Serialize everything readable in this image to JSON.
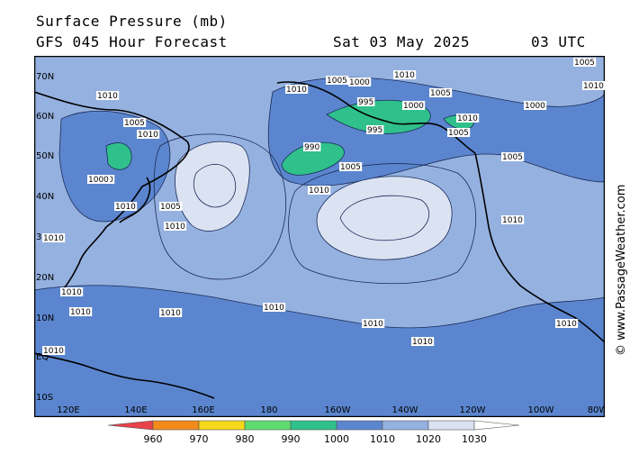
{
  "header": {
    "line1": "Surface Pressure (mb)",
    "line2": "GFS 045 Hour Forecast",
    "date": "Sat 03 May 2025",
    "time": "03 UTC"
  },
  "watermark": "© www.PassageWeather.com",
  "map": {
    "lat_labels": [
      "70N",
      "60N",
      "50N",
      "40N",
      "30N",
      "20N",
      "10N",
      "EQ",
      "10S"
    ],
    "lon_labels": [
      "120E",
      "140E",
      "160E",
      "180",
      "160W",
      "140W",
      "120W",
      "100W",
      "80W"
    ],
    "isobar_labels": [
      {
        "text": "1005"
      },
      {
        "text": "1010"
      },
      {
        "text": "1010"
      },
      {
        "text": "1010"
      },
      {
        "text": "1005"
      },
      {
        "text": "1000"
      },
      {
        "text": "1010"
      },
      {
        "text": "1005"
      },
      {
        "text": "1000"
      },
      {
        "text": "995"
      },
      {
        "text": "990"
      },
      {
        "text": "1005"
      },
      {
        "text": "1010"
      },
      {
        "text": "1000"
      },
      {
        "text": "995"
      },
      {
        "text": "1005"
      },
      {
        "text": "1010"
      },
      {
        "text": "1005"
      },
      {
        "text": "1010"
      },
      {
        "text": "1010"
      },
      {
        "text": "1010"
      },
      {
        "text": "1005"
      },
      {
        "text": "1010"
      },
      {
        "text": "1010"
      },
      {
        "text": "1010"
      },
      {
        "text": "1010"
      },
      {
        "text": "1010"
      },
      {
        "text": "1010"
      },
      {
        "text": "1010"
      },
      {
        "text": "1010"
      },
      {
        "text": "1010"
      },
      {
        "text": "1000"
      },
      {
        "text": "1005"
      },
      {
        "text": "1010"
      },
      {
        "text": "1010"
      }
    ]
  },
  "colorbar": {
    "labels": [
      "960",
      "970",
      "980",
      "990",
      "1000",
      "1010",
      "1020",
      "1030"
    ],
    "colors": [
      "#e8424a",
      "#f28a1c",
      "#f5d81a",
      "#5fdc6e",
      "#2fc08c",
      "#5b86cf",
      "#95b1e0",
      "#dbe3f3",
      "#ffffff"
    ]
  }
}
